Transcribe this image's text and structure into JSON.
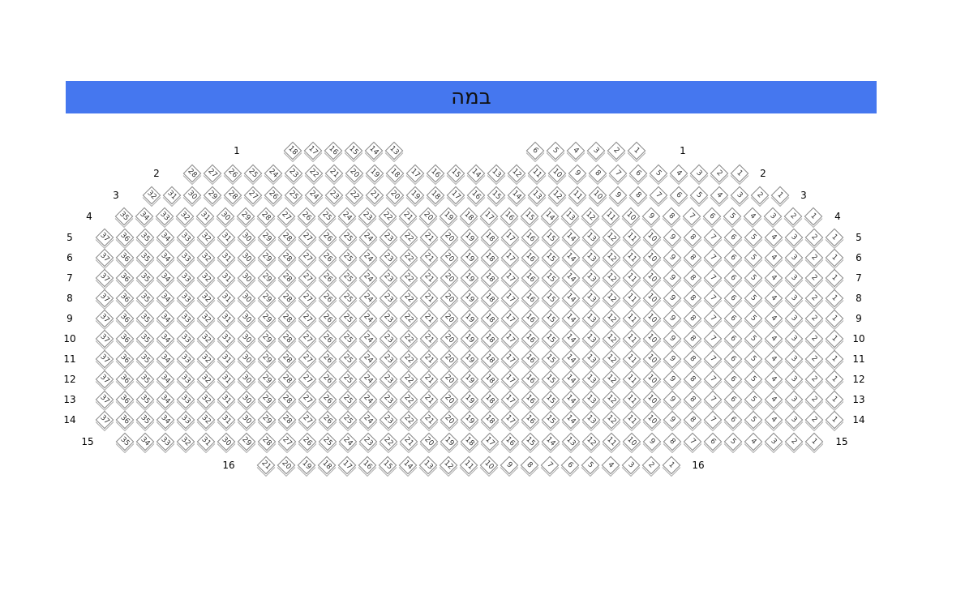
{
  "stage": {
    "label": "במה",
    "color": "#4577ef"
  },
  "rows": [
    {
      "label": "1",
      "blocks": [
        [
          18,
          17,
          16,
          15,
          14,
          13
        ],
        [
          6,
          5,
          4,
          3,
          2,
          1
        ]
      ]
    },
    {
      "label": "2",
      "blocks": [
        [
          28,
          27,
          26,
          25,
          24,
          23,
          22,
          21,
          20,
          19,
          18,
          17,
          16,
          15,
          14,
          13,
          12,
          11,
          10,
          9,
          8,
          7,
          6,
          5,
          4,
          3,
          2,
          1
        ]
      ]
    },
    {
      "label": "3",
      "from": 32
    },
    {
      "label": "4",
      "from": 35
    },
    {
      "label": "5",
      "from": 37
    },
    {
      "label": "6",
      "from": 37
    },
    {
      "label": "7",
      "from": 37
    },
    {
      "label": "8",
      "from": 37
    },
    {
      "label": "9",
      "from": 37
    },
    {
      "label": "10",
      "from": 37
    },
    {
      "label": "11",
      "from": 37
    },
    {
      "label": "12",
      "from": 37
    },
    {
      "label": "13",
      "from": 37
    },
    {
      "label": "14",
      "from": 37
    },
    {
      "label": "15",
      "from": 35
    },
    {
      "label": "16",
      "from": 21
    }
  ]
}
